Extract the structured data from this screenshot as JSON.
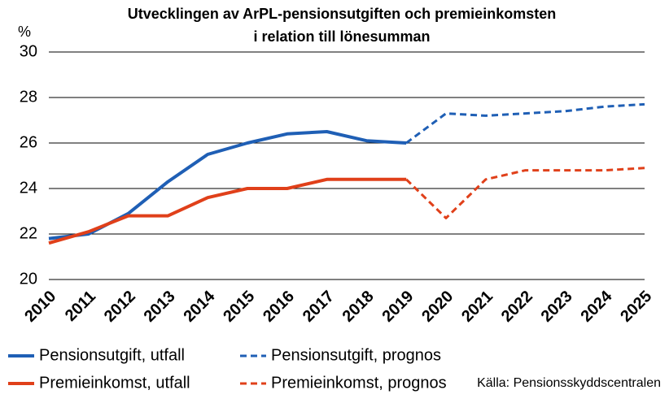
{
  "chart_data": {
    "type": "line",
    "title": [
      "Utvecklingen av ArPL-pensionsutgiften och premieinkomsten",
      "i relation till lönesumman"
    ],
    "y_unit": "%",
    "source": "Källa: Pensionsskyddscentralen",
    "x": [
      2010,
      2011,
      2012,
      2013,
      2014,
      2015,
      2016,
      2017,
      2018,
      2019,
      2020,
      2021,
      2022,
      2023,
      2024,
      2025
    ],
    "xlim": [
      2010,
      2025
    ],
    "xticks": [
      2010,
      2011,
      2012,
      2013,
      2014,
      2015,
      2016,
      2017,
      2018,
      2019,
      2020,
      2021,
      2022,
      2023,
      2024,
      2025
    ],
    "ylim": [
      20,
      30
    ],
    "yticks": [
      20,
      22,
      24,
      26,
      28,
      30
    ],
    "grid": true,
    "series": [
      {
        "name": "Pensionsutgift, utfall",
        "color": "#1f5fb5",
        "dashed": false,
        "values": [
          21.8,
          22.0,
          22.9,
          24.3,
          25.5,
          26.0,
          26.4,
          26.5,
          26.1,
          26.0,
          null,
          null,
          null,
          null,
          null,
          null
        ]
      },
      {
        "name": "Pensionsutgift, prognos",
        "color": "#1f5fb5",
        "dashed": true,
        "values": [
          null,
          null,
          null,
          null,
          null,
          null,
          null,
          null,
          null,
          26.0,
          27.3,
          27.2,
          27.3,
          27.4,
          27.6,
          27.7
        ]
      },
      {
        "name": "Premieinkomst, utfall",
        "color": "#e0401a",
        "dashed": false,
        "values": [
          21.6,
          22.1,
          22.8,
          22.8,
          23.6,
          24.0,
          24.0,
          24.4,
          24.4,
          24.4,
          null,
          null,
          null,
          null,
          null,
          null
        ]
      },
      {
        "name": "Premieinkomst, prognos",
        "color": "#e0401a",
        "dashed": true,
        "values": [
          null,
          null,
          null,
          null,
          null,
          null,
          null,
          null,
          null,
          24.4,
          22.7,
          24.4,
          24.8,
          24.8,
          24.8,
          24.9
        ]
      }
    ]
  }
}
